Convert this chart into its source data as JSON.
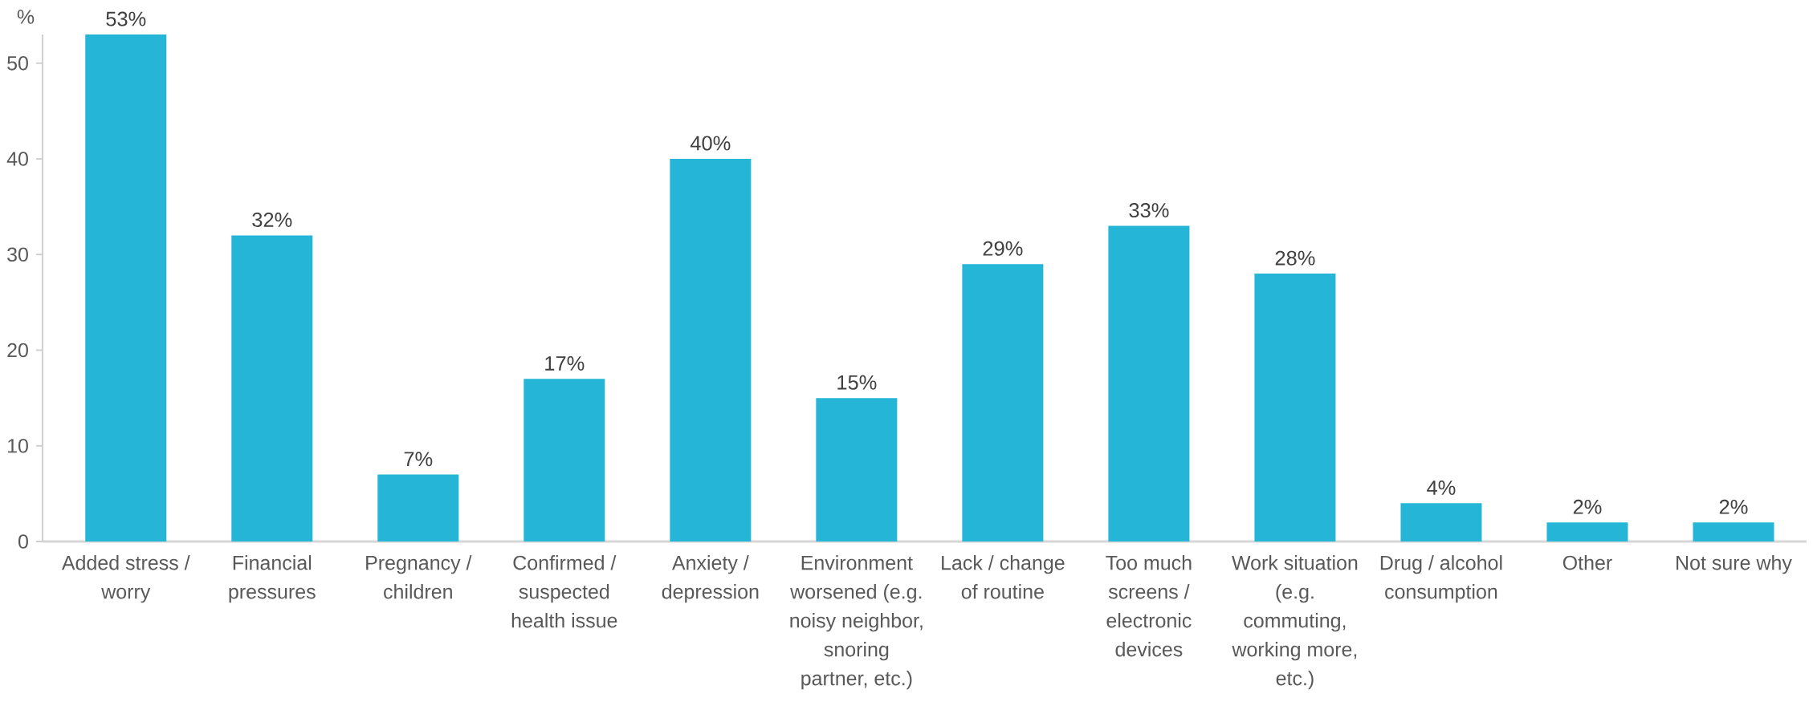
{
  "chart_data": {
    "type": "bar",
    "ylabel": "%",
    "categories": [
      "Added stress / worry",
      "Financial pressures",
      "Pregnancy / children",
      "Confirmed / suspected health issue",
      "Anxiety / depression",
      "Environment worsened (e.g. noisy neighbor, snoring partner, etc.)",
      "Lack / change of routine",
      "Too much screens / electronic devices",
      "Work situation (e.g. commuting, working more, etc.)",
      "Drug / alcohol consumption",
      "Other",
      "Not sure why"
    ],
    "values": [
      53,
      32,
      7,
      17,
      40,
      15,
      29,
      33,
      28,
      4,
      2,
      2
    ],
    "value_labels": [
      "53%",
      "32%",
      "7%",
      "17%",
      "40%",
      "15%",
      "29%",
      "33%",
      "28%",
      "4%",
      "2%",
      "2%"
    ],
    "color": "#25b5d6",
    "ylim": [
      0,
      53
    ],
    "yticks": [
      0,
      10,
      20,
      30,
      40,
      50
    ]
  }
}
